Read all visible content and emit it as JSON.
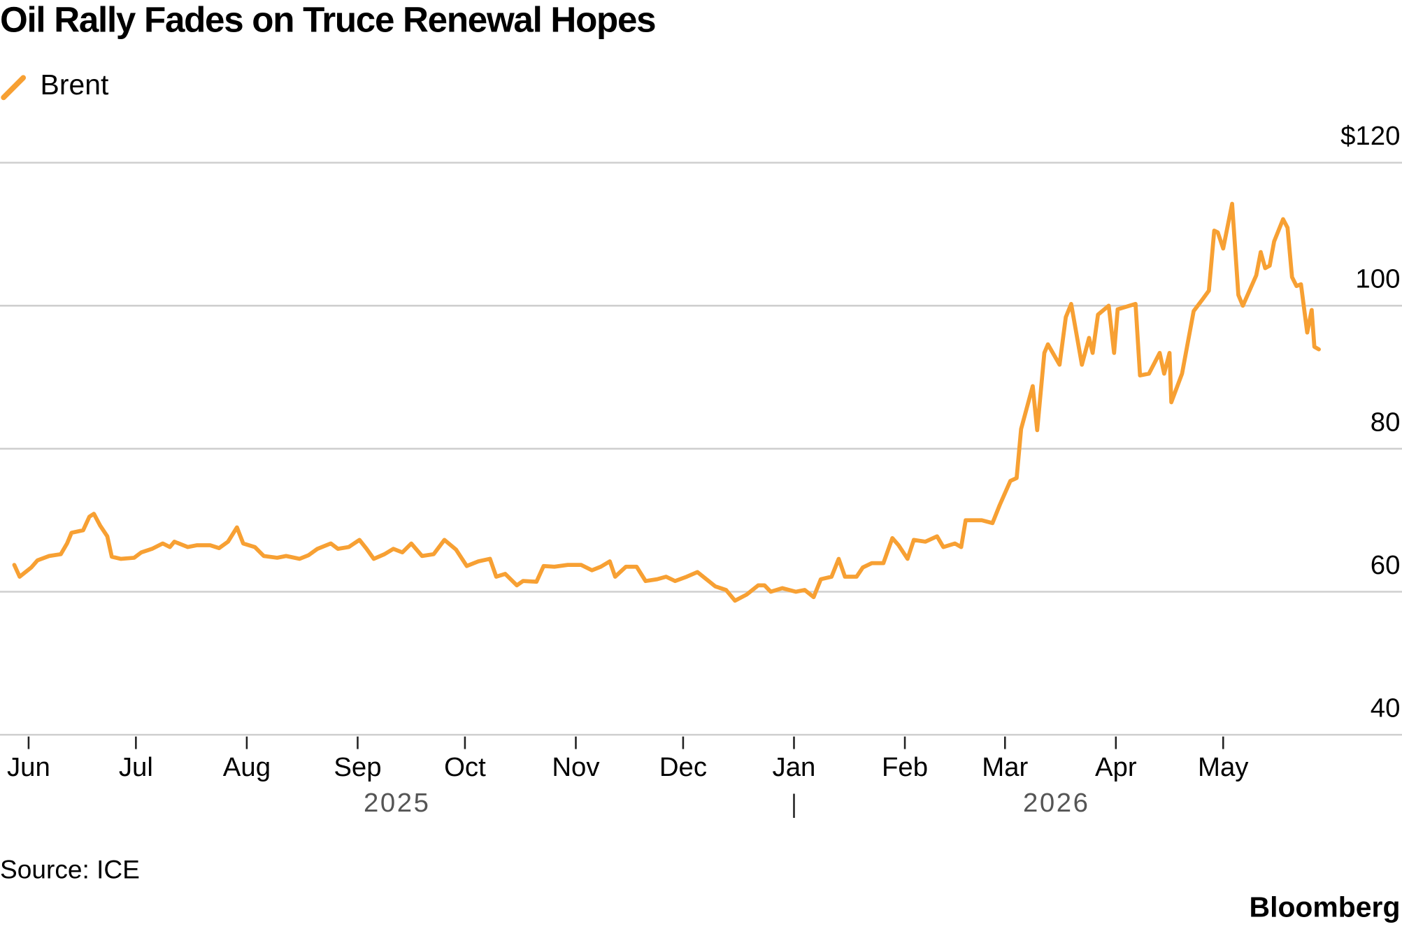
{
  "chart_data": {
    "type": "line",
    "title": "Oil Rally Fades on Truce Renewal Hopes",
    "source": "Source: ICE",
    "brand": "Bloomberg",
    "year_labels": [
      "2025",
      "2026"
    ],
    "xlim": [
      -8,
      384
    ],
    "xticks": [
      {
        "value": 0,
        "label": "Jun"
      },
      {
        "value": 30,
        "label": "Jul"
      },
      {
        "value": 61,
        "label": "Aug"
      },
      {
        "value": 92,
        "label": "Sep"
      },
      {
        "value": 122,
        "label": "Oct"
      },
      {
        "value": 153,
        "label": "Nov"
      },
      {
        "value": 183,
        "label": "Dec"
      },
      {
        "value": 214,
        "label": "Jan"
      },
      {
        "value": 245,
        "label": "Feb"
      },
      {
        "value": 273,
        "label": "Mar"
      },
      {
        "value": 304,
        "label": "Apr"
      },
      {
        "value": 334,
        "label": "May"
      }
    ],
    "ylim": [
      40,
      120
    ],
    "yticks": [
      {
        "value": 120,
        "label": "$120"
      },
      100,
      80,
      60,
      40
    ],
    "grid": true,
    "x": [
      -4,
      -2.5,
      0.75,
      2.5,
      5.75,
      9,
      10.75,
      12,
      15.25,
      17,
      18.25,
      20,
      22,
      23.25,
      25.75,
      29.5,
      31.5,
      34.5,
      37.5,
      39.5,
      40.75,
      44.5,
      47,
      50.75,
      53.25,
      55.75,
      58.25,
      60,
      63.25,
      65.75,
      69.5,
      72,
      75.75,
      78.25,
      80.75,
      84.5,
      86.5,
      89.5,
      92.5,
      94.5,
      96.5,
      99.5,
      102,
      104.5,
      107,
      110,
      113.25,
      116.25,
      119.5,
      122.5,
      125.75,
      129,
      130.75,
      133.25,
      136.5,
      138.25,
      142,
      144,
      147,
      150.75,
      154.5,
      157.5,
      160,
      162.5,
      164,
      167,
      170,
      172.5,
      175.75,
      178.25,
      180.75,
      184,
      187,
      189.5,
      192,
      195,
      197.5,
      200.75,
      204,
      205.75,
      207.5,
      210.75,
      214.5,
      217,
      219.5,
      221.5,
      224.5,
      226.5,
      228.25,
      231.5,
      233.25,
      235.75,
      239,
      241.5,
      243.25,
      245.75,
      247.5,
      250.75,
      254,
      255.75,
      259,
      260.75,
      262,
      266.5,
      269.5,
      271.5,
      274.5,
      276.25,
      277.5,
      280.75,
      282,
      284,
      285,
      288.25,
      290,
      291.5,
      294.5,
      296.5,
      297.5,
      299,
      302,
      303.5,
      304.5,
      309.5,
      310.75,
      313.25,
      316.25,
      317.5,
      319,
      319.5,
      322.5,
      325.75,
      328.25,
      330,
      331.5,
      332.5,
      334,
      336.5,
      338.25,
      339.5,
      343.25,
      344.5,
      345.75,
      347,
      348.25,
      350.75,
      352,
      353.25,
      354.5,
      355.75,
      357.5,
      358.75,
      359.5,
      360.75
    ],
    "series": [
      {
        "name": "Brent",
        "color": "#f7a033",
        "values": [
          63.75,
          62.1,
          63.4,
          64.4,
          65,
          65.25,
          66.75,
          68.25,
          68.6,
          70.5,
          70.9,
          69.25,
          67.75,
          64.9,
          64.6,
          64.75,
          65.5,
          66,
          66.75,
          66.25,
          67,
          66.25,
          66.5,
          66.5,
          66.1,
          67,
          69,
          66.75,
          66.25,
          65,
          64.75,
          65,
          64.6,
          65.1,
          66,
          66.75,
          66,
          66.25,
          67.25,
          66,
          64.6,
          65.25,
          66,
          65.5,
          66.75,
          65,
          65.25,
          67.25,
          65.9,
          63.6,
          64.25,
          64.6,
          62.1,
          62.5,
          60.9,
          61.5,
          61.4,
          63.6,
          63.5,
          63.75,
          63.75,
          63,
          63.5,
          64.25,
          62.1,
          63.5,
          63.5,
          61.5,
          61.75,
          62.1,
          61.5,
          62.1,
          62.75,
          61.75,
          60.75,
          60.25,
          58.75,
          59.6,
          60.9,
          60.9,
          60,
          60.5,
          60,
          60.25,
          59.25,
          61.75,
          62.1,
          64.6,
          62.1,
          62.1,
          63.4,
          64,
          64,
          67.5,
          66.5,
          64.6,
          67.25,
          67,
          67.75,
          66.25,
          66.75,
          66.25,
          70,
          70,
          69.6,
          72.1,
          75.5,
          75.9,
          82.75,
          88.75,
          82.6,
          93.4,
          94.6,
          91.75,
          98.4,
          100.25,
          91.75,
          95.5,
          93.4,
          98.75,
          100,
          93.4,
          99.5,
          100.25,
          90.25,
          90.5,
          93.4,
          90.5,
          93.4,
          86.5,
          90.5,
          99.25,
          100.9,
          102.1,
          110.5,
          110.25,
          108,
          114.25,
          101.5,
          100,
          104.25,
          107.5,
          105.25,
          105.6,
          109,
          112.1,
          110.9,
          104,
          102.75,
          103,
          96.25,
          99.4,
          94.25,
          93.9
        ]
      }
    ]
  }
}
